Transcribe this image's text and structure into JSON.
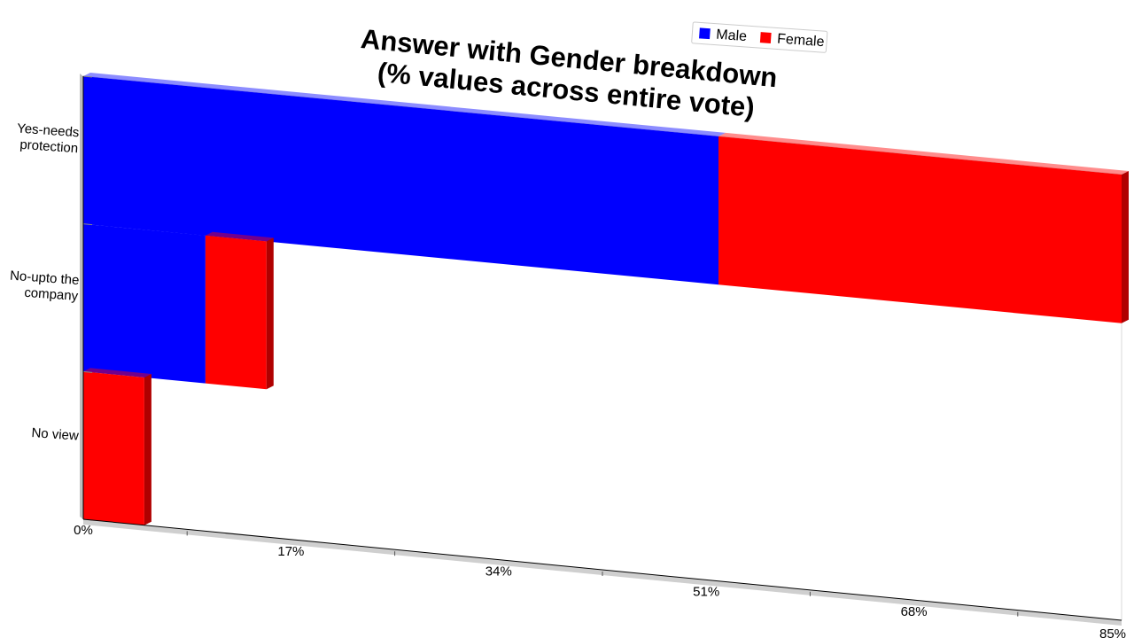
{
  "chart_data": {
    "type": "bar",
    "orientation": "horizontal",
    "stacked": true,
    "style": "3d-perspective",
    "title": [
      "Answer with Gender breakdown",
      "(% values across entire vote)"
    ],
    "categories": [
      "Yes-needs protection",
      "No-upto the company",
      "No view"
    ],
    "series": [
      {
        "name": "Male",
        "color": "#0000ff",
        "side_color": "#00009a",
        "values": [
          52,
          10,
          0
        ]
      },
      {
        "name": "Female",
        "color": "#ff0000",
        "side_color": "#b00000",
        "values": [
          33,
          5,
          5
        ]
      }
    ],
    "xlabel": "",
    "ylabel": "",
    "xlim": [
      0,
      85
    ],
    "xticks": [
      "0%",
      "17%",
      "34%",
      "51%",
      "68%",
      "85%"
    ],
    "grid": false,
    "legend": {
      "position": "top-right"
    }
  }
}
